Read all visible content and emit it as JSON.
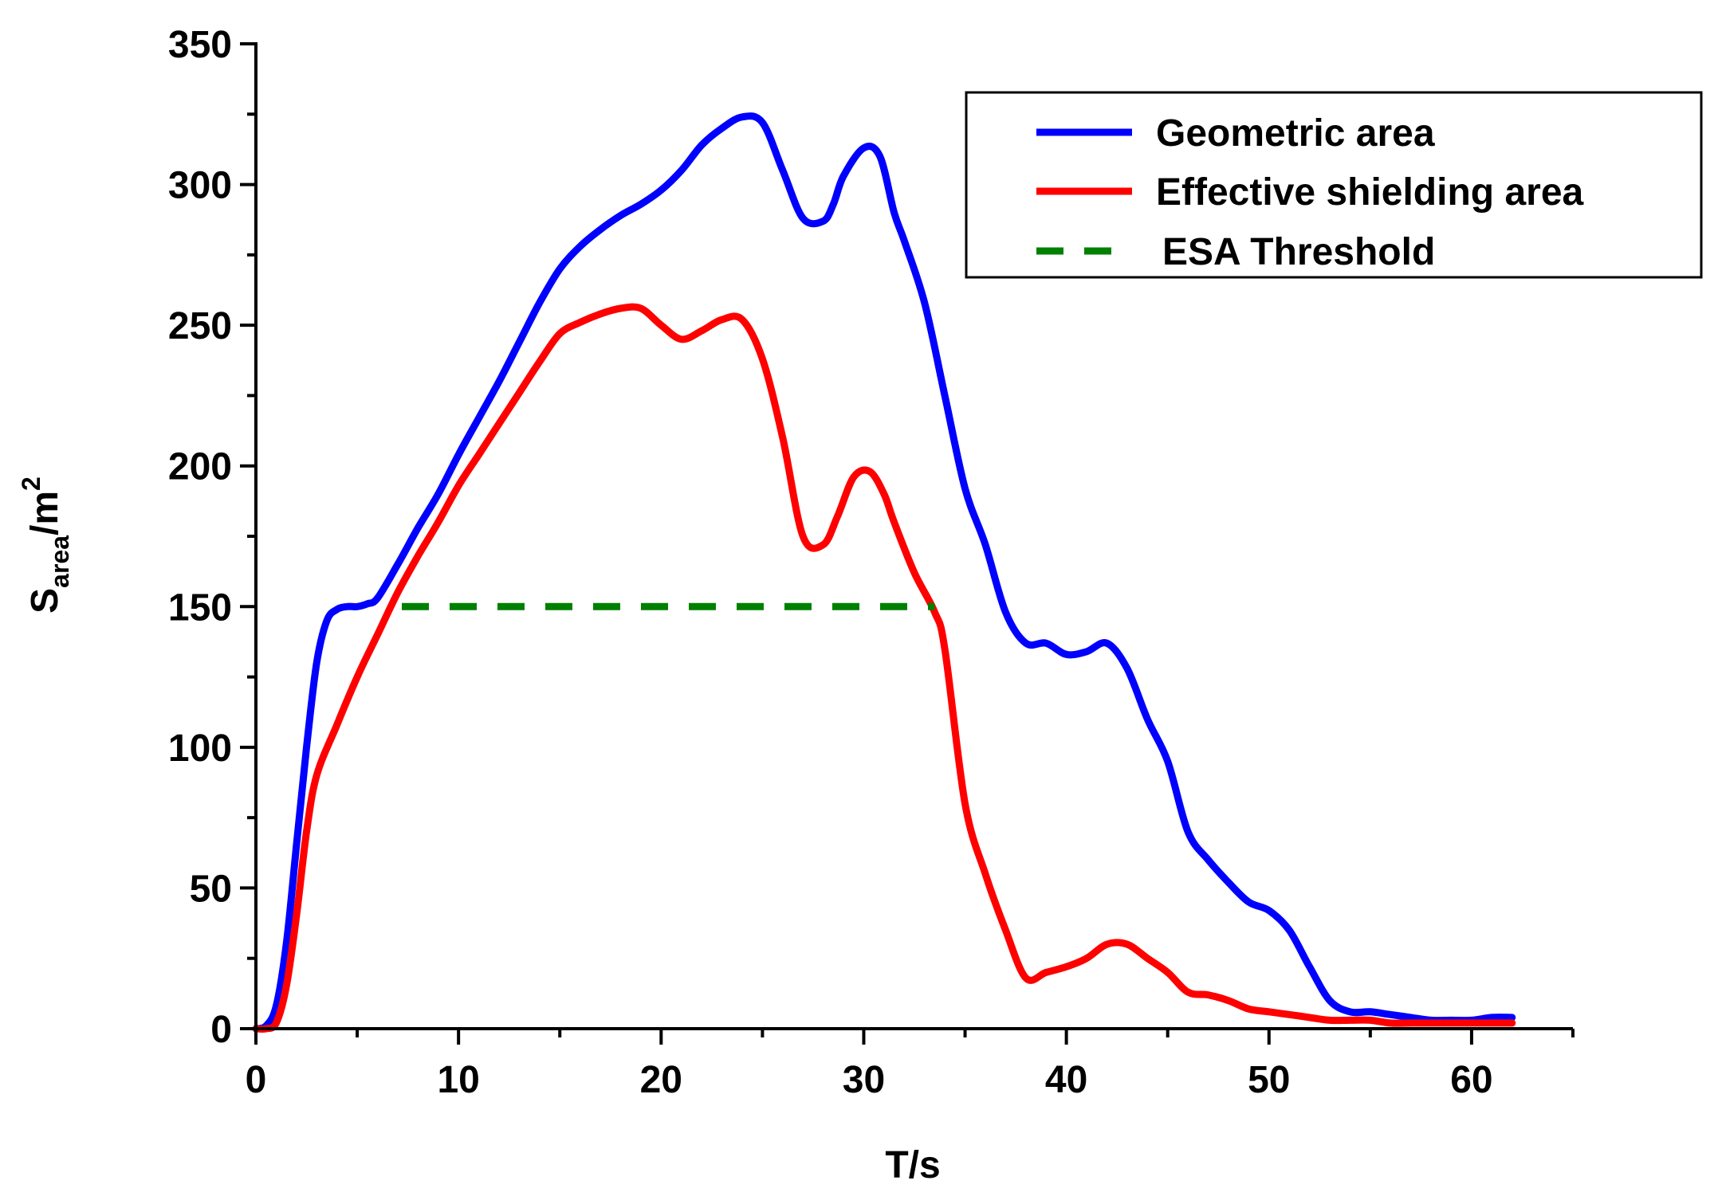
{
  "chart_data": {
    "type": "line",
    "title": "",
    "xlabel": "T/s",
    "ylabel": {
      "base": "S",
      "sub": "area",
      "unit": "/m",
      "sup": "2"
    },
    "xlim": [
      0,
      65
    ],
    "ylim": [
      0,
      350
    ],
    "xticks": [
      0,
      10,
      20,
      30,
      40,
      50,
      60
    ],
    "yticks": [
      0,
      50,
      100,
      150,
      200,
      250,
      300,
      350
    ],
    "xtick_labels": [
      "0",
      "10",
      "20",
      "30",
      "40",
      "50",
      "60"
    ],
    "ytick_labels": [
      "0",
      "50",
      "100",
      "150",
      "200",
      "250",
      "300",
      "350"
    ],
    "grid": false,
    "legend_position": "top-right",
    "series": [
      {
        "name": "Geometric area",
        "color": "#0000ff",
        "style": "solid",
        "x": [
          0,
          0.5,
          1.0,
          1.5,
          2.0,
          2.5,
          3.0,
          3.5,
          4.0,
          4.5,
          5.0,
          5.5,
          6.0,
          7.0,
          8.0,
          9.0,
          10.0,
          11.0,
          12.0,
          13.0,
          14.0,
          15.0,
          16.0,
          17.0,
          18.0,
          19.0,
          20.0,
          21.0,
          22.0,
          23.0,
          24.0,
          25.0,
          26.0,
          27.0,
          28.0,
          28.5,
          29.0,
          30.0,
          30.8,
          31.5,
          32.0,
          33.0,
          34.0,
          35.0,
          36.0,
          37.0,
          38.0,
          39.0,
          40.0,
          41.0,
          42.0,
          43.0,
          44.0,
          45.0,
          46.0,
          47.0,
          48.0,
          49.0,
          50.0,
          51.0,
          52.0,
          53.0,
          54.0,
          55.0,
          56.0,
          57.0,
          58.0,
          59.0,
          60.0,
          61.0,
          62.0
        ],
        "values": [
          0,
          1,
          8,
          30,
          65,
          100,
          130,
          145,
          149,
          150,
          150,
          151,
          153,
          165,
          178,
          190,
          204,
          217,
          230,
          244,
          258,
          270,
          278,
          284,
          289,
          293,
          298,
          305,
          314,
          320,
          324,
          322,
          305,
          288,
          287,
          293,
          303,
          313,
          310,
          290,
          280,
          258,
          225,
          192,
          172,
          148,
          137,
          137,
          133,
          134,
          137,
          128,
          110,
          95,
          70,
          60,
          52,
          45,
          42,
          35,
          22,
          10,
          6,
          6,
          5,
          4,
          3,
          3,
          3,
          4,
          4
        ]
      },
      {
        "name": "Effective shielding area",
        "color": "#ff0000",
        "style": "solid",
        "x": [
          0,
          0.5,
          1.0,
          1.5,
          2.0,
          2.5,
          3.0,
          4.0,
          5.0,
          6.0,
          7.0,
          8.0,
          9.0,
          10.0,
          11.0,
          12.0,
          13.0,
          14.0,
          15.0,
          16.0,
          17.0,
          18.0,
          19.0,
          20.0,
          21.0,
          22.0,
          23.0,
          24.0,
          25.0,
          26.0,
          27.0,
          28.0,
          28.7,
          29.5,
          30.3,
          31.0,
          31.5,
          32.5,
          33.5,
          34.0,
          35.0,
          36.0,
          37.0,
          38.0,
          39.0,
          40.0,
          41.0,
          42.0,
          43.0,
          44.0,
          45.0,
          46.0,
          47.0,
          48.0,
          49.0,
          50.0,
          51.0,
          52.0,
          53.0,
          54.0,
          55.0,
          56.0,
          57.0,
          58.0,
          59.0,
          60.0,
          61.0,
          62.0
        ],
        "values": [
          0,
          0,
          2,
          15,
          40,
          70,
          90,
          108,
          125,
          140,
          155,
          168,
          180,
          193,
          204,
          215,
          226,
          237,
          247,
          251,
          254,
          256,
          256,
          250,
          245,
          248,
          252,
          252,
          238,
          210,
          175,
          172,
          182,
          196,
          198,
          190,
          180,
          162,
          148,
          135,
          80,
          55,
          35,
          18,
          20,
          22,
          25,
          30,
          30,
          25,
          20,
          13,
          12,
          10,
          7,
          6,
          5,
          4,
          3,
          3,
          3,
          2,
          2,
          2,
          2,
          2,
          2,
          2
        ]
      },
      {
        "name": "ESA Threshold",
        "color": "#008000",
        "style": "dashed",
        "x": [
          7.2,
          33.5
        ],
        "values": [
          150,
          150
        ]
      }
    ]
  }
}
